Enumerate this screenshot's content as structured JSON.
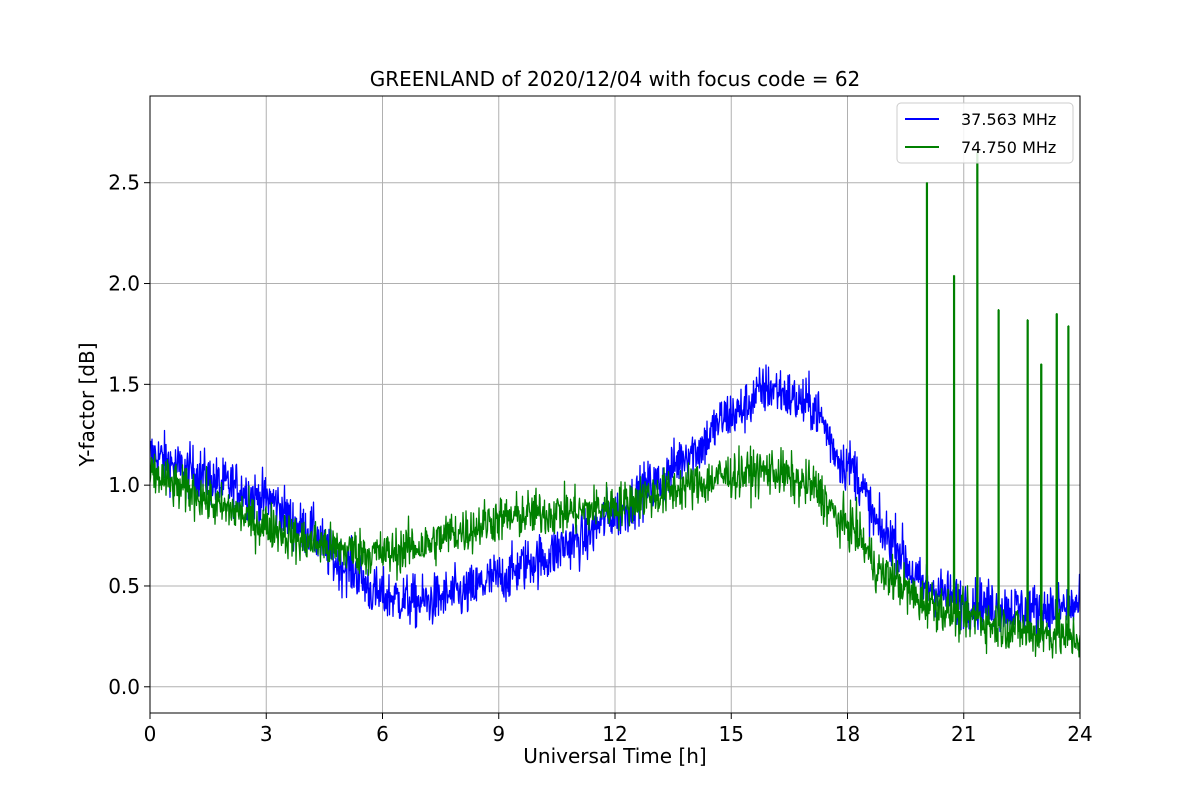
{
  "chart_data": {
    "type": "line",
    "title": "GREENLAND of 2020/12/04 with focus code = 62",
    "xlabel": "Universal Time [h]",
    "ylabel": "Y-factor [dB]",
    "xlim": [
      0,
      24
    ],
    "ylim": [
      -0.13,
      2.93
    ],
    "xticks": [
      0,
      3,
      6,
      9,
      12,
      15,
      18,
      21,
      24
    ],
    "yticks": [
      0.0,
      0.5,
      1.0,
      1.5,
      2.0,
      2.5
    ],
    "xtick_labels": [
      "0",
      "3",
      "6",
      "9",
      "12",
      "15",
      "18",
      "21",
      "24"
    ],
    "ytick_labels": [
      "0.0",
      "0.5",
      "1.0",
      "1.5",
      "2.0",
      "2.5"
    ],
    "grid": true,
    "legend_position": "top-right",
    "series": [
      {
        "name": "37.563 MHz",
        "color": "#0000ff",
        "x": [
          0,
          1,
          2,
          3,
          4,
          5,
          6,
          7,
          8,
          9,
          10,
          11,
          12,
          13,
          14,
          15,
          16,
          17,
          18,
          19,
          20,
          21,
          22,
          23,
          24
        ],
        "y": [
          1.15,
          1.07,
          1.0,
          0.93,
          0.78,
          0.6,
          0.45,
          0.42,
          0.46,
          0.54,
          0.63,
          0.72,
          0.86,
          1.0,
          1.17,
          1.35,
          1.48,
          1.4,
          1.1,
          0.75,
          0.5,
          0.42,
          0.39,
          0.38,
          0.4
        ],
        "noise": 0.1
      },
      {
        "name": "74.750 MHz",
        "color": "#008000",
        "x": [
          0,
          1,
          2,
          3,
          4,
          5,
          6,
          7,
          8,
          9,
          10,
          11,
          12,
          13,
          14,
          15,
          16,
          17,
          18,
          19,
          20,
          21,
          22,
          23,
          24
        ],
        "y": [
          1.05,
          0.97,
          0.88,
          0.8,
          0.72,
          0.68,
          0.66,
          0.7,
          0.77,
          0.83,
          0.86,
          0.87,
          0.9,
          0.95,
          1.0,
          1.05,
          1.07,
          1.0,
          0.8,
          0.55,
          0.42,
          0.35,
          0.3,
          0.26,
          0.24
        ],
        "noise": 0.09,
        "spikes": [
          {
            "x": 20.05,
            "y": 2.5
          },
          {
            "x": 20.75,
            "y": 2.04
          },
          {
            "x": 21.35,
            "y": 2.65
          },
          {
            "x": 21.9,
            "y": 1.87
          },
          {
            "x": 22.65,
            "y": 1.82
          },
          {
            "x": 23.0,
            "y": 1.6
          },
          {
            "x": 23.4,
            "y": 1.85
          },
          {
            "x": 23.7,
            "y": 1.79
          }
        ]
      }
    ]
  }
}
